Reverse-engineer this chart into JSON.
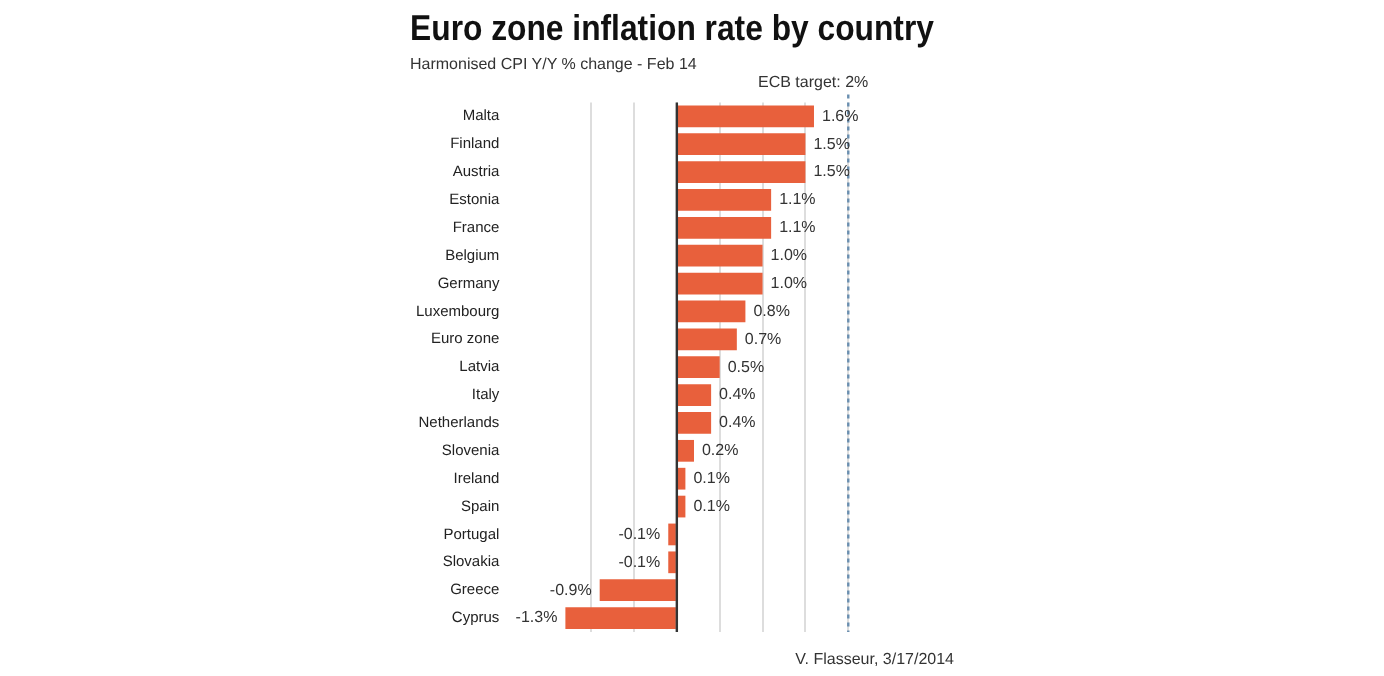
{
  "chart_data": {
    "type": "bar",
    "orientation": "horizontal",
    "title": "Euro zone inflation rate by country",
    "subtitle": "Harmonised CPI Y/Y % change - Feb 14",
    "categories": [
      "Malta",
      "Finland",
      "Austria",
      "Estonia",
      "France",
      "Belgium",
      "Germany",
      "Luxembourg",
      "Euro zone",
      "Latvia",
      "Italy",
      "Netherlands",
      "Slovenia",
      "Ireland",
      "Spain",
      "Portugal",
      "Slovakia",
      "Greece",
      "Cyprus"
    ],
    "values": [
      1.6,
      1.5,
      1.5,
      1.1,
      1.1,
      1.0,
      1.0,
      0.8,
      0.7,
      0.5,
      0.4,
      0.4,
      0.2,
      0.1,
      0.1,
      -0.1,
      -0.1,
      -0.9,
      -1.3
    ],
    "value_labels": [
      "1.6%",
      "1.5%",
      "1.5%",
      "1.1%",
      "1.1%",
      "1.0%",
      "1.0%",
      "0.8%",
      "0.7%",
      "0.5%",
      "0.4%",
      "0.4%",
      "0.2%",
      "0.1%",
      "0.1%",
      "-0.1%",
      "-0.1%",
      "-0.9%",
      "-1.3%"
    ],
    "color": "#e8603c",
    "xticks": [
      {
        "value": -1,
        "label": null
      },
      {
        "value": -0.5,
        "label": null
      },
      {
        "value": 0,
        "label": null
      },
      {
        "value": 0.5,
        "label": null
      },
      {
        "value": 1,
        "label": null
      },
      {
        "value": 1.5,
        "label": null
      },
      {
        "value": 2,
        "label": null
      }
    ],
    "grid": "x",
    "tick_labels": "y",
    "ref_lines": [
      {
        "axis": "x",
        "value": 2,
        "label": "ECB target: 2%",
        "color": "#6a8fb0",
        "line_style": "dotted"
      }
    ],
    "annotations": [
      "V. Flasseur, 3/17/2014"
    ]
  }
}
